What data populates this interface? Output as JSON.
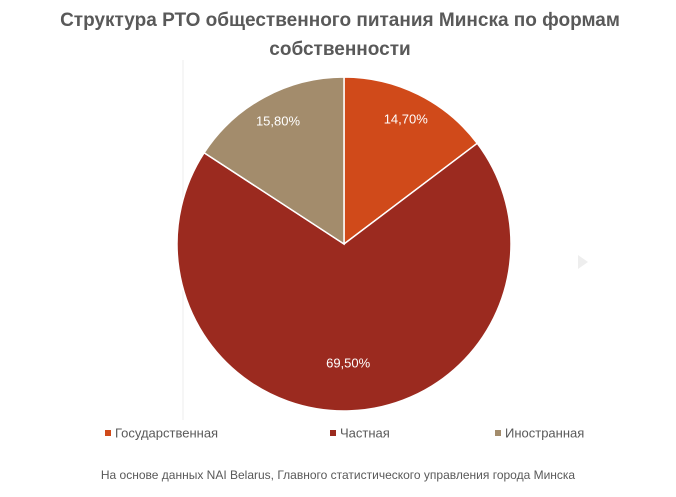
{
  "chart_data": {
    "type": "pie",
    "title": "Структура РТО общественного питания Минска по формам собственности",
    "categories": [
      "Государственная",
      "Частная",
      "Иностранная"
    ],
    "values": [
      14.7,
      69.5,
      15.8
    ],
    "value_labels": [
      "14,70%",
      "69,50%",
      "15,80%"
    ],
    "colors": [
      "#d04a1a",
      "#9b2a1f",
      "#a38c6c"
    ],
    "legend": "bottom",
    "note": "На основе данных NAI Belarus, Главного статистического управления города Минска"
  }
}
